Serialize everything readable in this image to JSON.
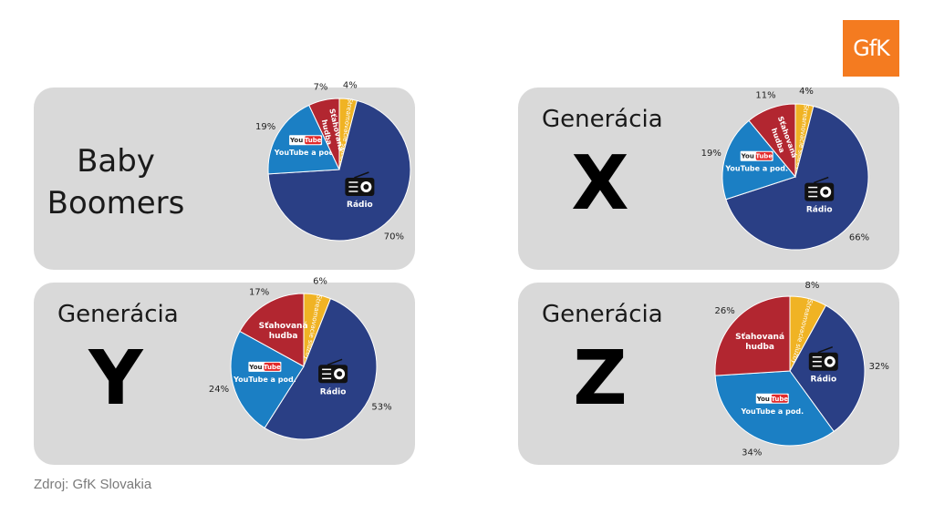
{
  "logo": {
    "text": "GfK",
    "color": "#f47b20"
  },
  "source": "Zdroj: GfK Slovakia",
  "colors": {
    "radio": "#2a3f85",
    "youtube": "#1b7fc4",
    "music": "#b22630",
    "other": "#f0b324"
  },
  "chart_data": [
    {
      "type": "pie",
      "title_lines": [
        "Baby",
        "Boomers"
      ],
      "labels": {
        "radio": "Rádio",
        "youtube": "YouTube a pod.",
        "music": "Sťahovaná hudba",
        "other": "Streamovacie služby"
      },
      "slices": [
        {
          "key": "other",
          "value": 4,
          "label_text": "4%"
        },
        {
          "key": "radio",
          "value": 70,
          "label_text": "70%"
        },
        {
          "key": "youtube",
          "value": 19,
          "label_text": "19%"
        },
        {
          "key": "music",
          "value": 7,
          "label_text": "7%"
        }
      ]
    },
    {
      "type": "pie",
      "title": "Generácia",
      "letter": "X",
      "labels": {
        "radio": "Rádio",
        "youtube": "YouTube a pod.",
        "music": "Sťahovaná hudba",
        "other": "Streamovacie služby"
      },
      "slices": [
        {
          "key": "other",
          "value": 4,
          "label_text": "4%"
        },
        {
          "key": "radio",
          "value": 66,
          "label_text": "66%"
        },
        {
          "key": "youtube",
          "value": 19,
          "label_text": "19%"
        },
        {
          "key": "music",
          "value": 11,
          "label_text": "11%"
        }
      ]
    },
    {
      "type": "pie",
      "title": "Generácia",
      "letter": "Y",
      "labels": {
        "radio": "Rádio",
        "youtube": "YouTube a pod.",
        "music": "Sťahovaná hudba",
        "other": "Streamovacie služby"
      },
      "slices": [
        {
          "key": "other",
          "value": 6,
          "label_text": "6%"
        },
        {
          "key": "radio",
          "value": 53,
          "label_text": "53%"
        },
        {
          "key": "youtube",
          "value": 24,
          "label_text": "24%"
        },
        {
          "key": "music",
          "value": 17,
          "label_text": "17%"
        }
      ]
    },
    {
      "type": "pie",
      "title": "Generácia",
      "letter": "Z",
      "labels": {
        "radio": "Rádio",
        "youtube": "YouTube a pod.",
        "music": "Sťahovaná hudba",
        "other": "Streamovacie služby"
      },
      "slices": [
        {
          "key": "other",
          "value": 8,
          "label_text": "8%"
        },
        {
          "key": "radio",
          "value": 32,
          "label_text": "32%"
        },
        {
          "key": "youtube",
          "value": 34,
          "label_text": "34%"
        },
        {
          "key": "music",
          "value": 26,
          "label_text": "26%"
        }
      ]
    }
  ]
}
